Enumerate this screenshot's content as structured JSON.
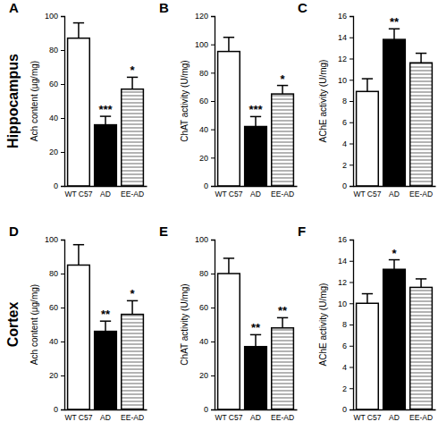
{
  "chart_data": [
    {
      "type": "bar",
      "title": "A",
      "subtitle": "Hippocampus",
      "y_label": "Ach content (μg/mg)",
      "categories": [
        "WT C57",
        "AD",
        "EE-AD"
      ],
      "values": [
        87,
        36,
        57
      ],
      "errors": [
        9,
        5,
        7
      ],
      "annotations": [
        null,
        "***",
        "*"
      ],
      "colors": [
        "#ffffff",
        "#000000",
        "#808080"
      ],
      "ylim": [
        0,
        100
      ],
      "yticks": [
        0,
        20,
        40,
        60,
        80,
        100
      ]
    },
    {
      "type": "bar",
      "title": "B",
      "y_label": "ChAT activity (U/mg)",
      "categories": [
        "WT C57",
        "AD",
        "EE-AD"
      ],
      "values": [
        95,
        42,
        65
      ],
      "errors": [
        10,
        7,
        6
      ],
      "annotations": [
        null,
        "***",
        "*"
      ],
      "colors": [
        "#ffffff",
        "#000000",
        "#808080"
      ],
      "ylim": [
        0,
        120
      ],
      "yticks": [
        0,
        20,
        40,
        60,
        80,
        100,
        120
      ]
    },
    {
      "type": "bar",
      "title": "C",
      "y_label": "AChE activity (U/mg)",
      "categories": [
        "WT C57",
        "AD",
        "EE-AD"
      ],
      "values": [
        8.9,
        13.8,
        11.6
      ],
      "errors": [
        1.2,
        1.0,
        0.9
      ],
      "annotations": [
        null,
        "**",
        null
      ],
      "colors": [
        "#ffffff",
        "#000000",
        "#808080"
      ],
      "ylim": [
        0,
        16
      ],
      "yticks": [
        0,
        2,
        4,
        6,
        8,
        10,
        12,
        14,
        16
      ]
    },
    {
      "type": "bar",
      "title": "D",
      "subtitle": "Cortex",
      "y_label": "Ach content (μg/mg)",
      "categories": [
        "WT C57",
        "AD",
        "EE-AD"
      ],
      "values": [
        85,
        46,
        56
      ],
      "errors": [
        12,
        6,
        8
      ],
      "annotations": [
        null,
        "**",
        "*"
      ],
      "colors": [
        "#ffffff",
        "#000000",
        "#808080"
      ],
      "ylim": [
        0,
        100
      ],
      "yticks": [
        0,
        20,
        40,
        60,
        80,
        100
      ]
    },
    {
      "type": "bar",
      "title": "E",
      "y_label": "ChAT activity (U/mg)",
      "categories": [
        "WT C57",
        "AD",
        "EE-AD"
      ],
      "values": [
        80,
        37,
        48
      ],
      "errors": [
        9,
        7,
        6
      ],
      "annotations": [
        null,
        "**",
        "**"
      ],
      "colors": [
        "#ffffff",
        "#000000",
        "#808080"
      ],
      "ylim": [
        0,
        100
      ],
      "yticks": [
        0,
        20,
        40,
        60,
        80,
        100
      ]
    },
    {
      "type": "bar",
      "title": "F",
      "y_label": "AChE activity (U/mg)",
      "categories": [
        "WT C57",
        "AD",
        "EE-AD"
      ],
      "values": [
        10.0,
        13.2,
        11.5
      ],
      "errors": [
        0.9,
        0.9,
        0.8
      ],
      "annotations": [
        null,
        "*",
        null
      ],
      "colors": [
        "#ffffff",
        "#000000",
        "#808080"
      ],
      "ylim": [
        0,
        16
      ],
      "yticks": [
        0,
        2,
        4,
        6,
        8,
        10,
        12,
        14,
        16
      ]
    }
  ]
}
